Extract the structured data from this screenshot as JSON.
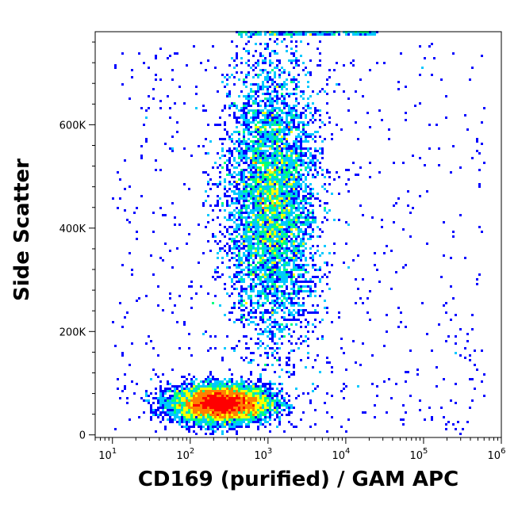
{
  "chart_data": {
    "type": "scatter",
    "title": "",
    "xlabel": "CD169 (purified) / GAM APC",
    "ylabel": "Side Scatter",
    "x_scale": "log",
    "xlim": [
      6,
      1000000
    ],
    "ylim": [
      -5000,
      780000
    ],
    "x_ticks": [
      {
        "base": "10",
        "exp": "1",
        "value": 10
      },
      {
        "base": "10",
        "exp": "2",
        "value": 100
      },
      {
        "base": "10",
        "exp": "3",
        "value": 1000
      },
      {
        "base": "10",
        "exp": "4",
        "value": 10000
      },
      {
        "base": "10",
        "exp": "5",
        "value": 100000
      },
      {
        "base": "10",
        "exp": "6",
        "value": 1000000
      }
    ],
    "y_ticks": [
      {
        "label": "0",
        "value": 0
      },
      {
        "label": "200K",
        "value": 200000
      },
      {
        "label": "400K",
        "value": 400000
      },
      {
        "label": "600K",
        "value": 600000
      }
    ],
    "populations": [
      {
        "description": "low-SSC cluster",
        "center_x": 250,
        "center_y": 60000,
        "density": "very high"
      },
      {
        "description": "high-SSC cluster",
        "center_x": 1000,
        "center_y": 450000,
        "density": "medium"
      }
    ],
    "colormap": [
      "#0000ff",
      "#00c8ff",
      "#00ff80",
      "#ffff00",
      "#ff8000",
      "#ff0000"
    ],
    "grid": false
  }
}
